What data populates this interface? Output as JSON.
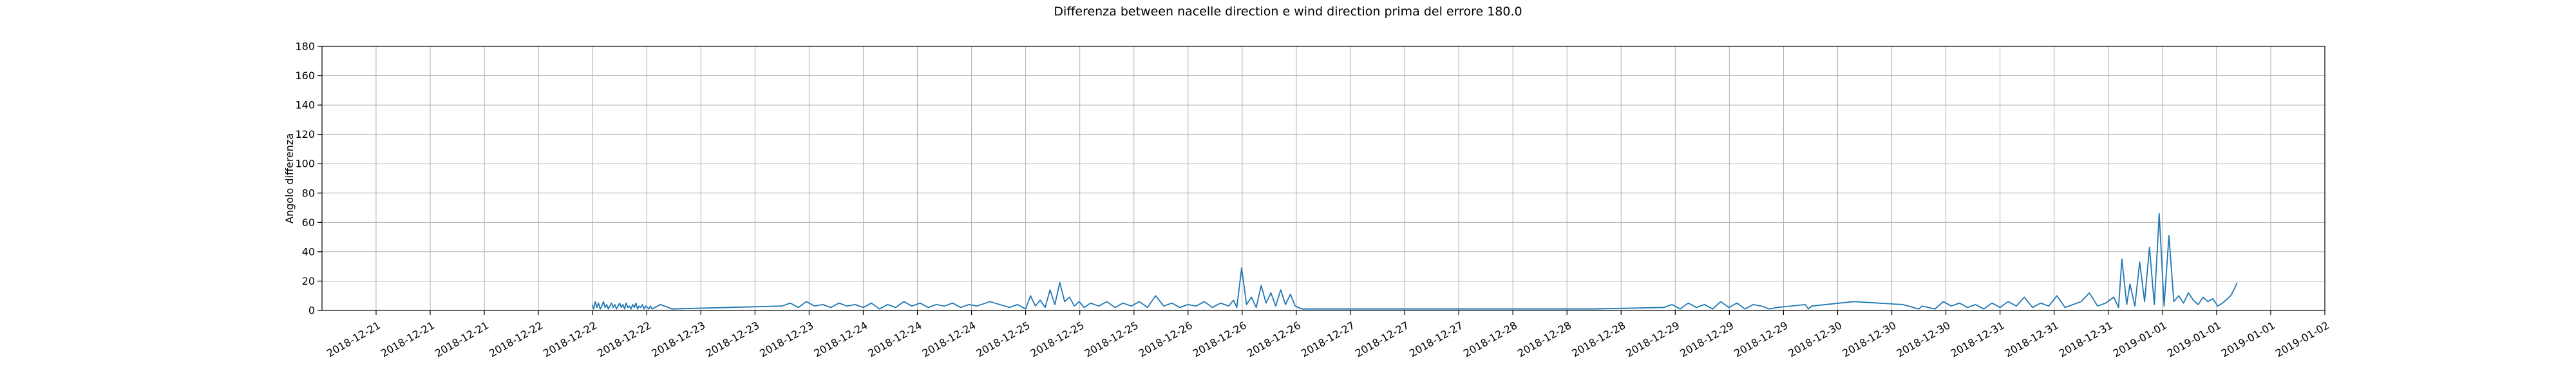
{
  "chart_data": {
    "type": "line",
    "title": "Differenza between nacelle direction e wind direction prima del errore 180.0",
    "xlabel": "",
    "ylabel": "Angolo differenza",
    "ylim": [
      0,
      180
    ],
    "y_ticks": [
      0,
      20,
      40,
      60,
      80,
      100,
      120,
      140,
      160,
      180
    ],
    "y_tick_labels": [
      "0",
      "20",
      "40",
      "60",
      "80",
      "100",
      "120",
      "140",
      "160",
      "180"
    ],
    "x_tick_labels": [
      "2018-12-21",
      "2018-12-21",
      "2018-12-21",
      "2018-12-22",
      "2018-12-22",
      "2018-12-22",
      "2018-12-23",
      "2018-12-23",
      "2018-12-23",
      "2018-12-24",
      "2018-12-24",
      "2018-12-24",
      "2018-12-25",
      "2018-12-25",
      "2018-12-25",
      "2018-12-26",
      "2018-12-26",
      "2018-12-26",
      "2018-12-27",
      "2018-12-27",
      "2018-12-27",
      "2018-12-28",
      "2018-12-28",
      "2018-12-28",
      "2018-12-29",
      "2018-12-29",
      "2018-12-29",
      "2018-12-30",
      "2018-12-30",
      "2018-12-30",
      "2018-12-31",
      "2018-12-31",
      "2018-12-31",
      "2019-01-01",
      "2019-01-01",
      "2019-01-01",
      "2019-01-02"
    ],
    "x_tick_positions": [
      0.0,
      0.3333,
      0.6667,
      1.0,
      1.3333,
      1.6667,
      2.0,
      2.3333,
      2.6667,
      3.0,
      3.3333,
      3.6667,
      4.0,
      4.3333,
      4.6667,
      5.0,
      5.3333,
      5.6667,
      6.0,
      6.3333,
      6.6667,
      7.0,
      7.3333,
      7.6667,
      8.0,
      8.3333,
      8.6667,
      9.0,
      9.3333,
      9.6667,
      10.0,
      10.3333,
      10.6667,
      11.0,
      11.3333,
      11.6667,
      12.0
    ],
    "xlim": [
      -0.333,
      12.0
    ],
    "grid": true,
    "line_color": "#1f77b4",
    "series": [
      {
        "x": [
          1.33,
          1.34,
          1.35,
          1.36,
          1.37,
          1.38,
          1.39,
          1.4,
          1.41,
          1.42,
          1.43,
          1.44,
          1.45,
          1.46,
          1.47,
          1.48,
          1.49,
          1.5,
          1.51,
          1.52,
          1.53,
          1.54,
          1.55,
          1.56,
          1.57,
          1.58,
          1.59,
          1.6,
          1.61,
          1.62,
          1.63,
          1.64,
          1.65,
          1.66,
          1.67,
          1.68,
          1.69,
          1.7,
          1.75,
          1.8,
          1.82,
          2.5,
          2.55,
          2.6,
          2.65,
          2.7,
          2.75,
          2.8,
          2.85,
          2.9,
          2.95,
          3.0,
          3.05,
          3.1,
          3.15,
          3.2,
          3.25,
          3.3,
          3.35,
          3.4,
          3.45,
          3.5,
          3.55,
          3.6,
          3.65,
          3.7,
          3.78,
          3.9,
          3.95,
          4.0,
          4.03,
          4.06,
          4.09,
          4.12,
          4.15,
          4.18,
          4.21,
          4.24,
          4.27,
          4.3,
          4.33,
          4.36,
          4.4,
          4.45,
          4.5,
          4.55,
          4.6,
          4.65,
          4.7,
          4.75,
          4.8,
          4.85,
          4.9,
          4.95,
          5.0,
          5.05,
          5.1,
          5.15,
          5.2,
          5.25,
          5.28,
          5.3,
          5.33,
          5.36,
          5.39,
          5.42,
          5.45,
          5.48,
          5.51,
          5.54,
          5.57,
          5.6,
          5.63,
          5.66,
          5.7,
          6.5,
          7.5,
          7.93,
          7.98,
          8.03,
          8.08,
          8.13,
          8.18,
          8.23,
          8.28,
          8.33,
          8.38,
          8.43,
          8.48,
          8.53,
          8.58,
          8.63,
          8.8,
          8.82,
          8.84,
          9.1,
          9.4,
          9.5,
          9.52,
          9.6,
          9.65,
          9.7,
          9.75,
          9.8,
          9.85,
          9.9,
          9.95,
          10.0,
          10.05,
          10.1,
          10.15,
          10.2,
          10.25,
          10.3,
          10.35,
          10.4,
          10.45,
          10.5,
          10.55,
          10.6,
          10.65,
          10.7,
          10.73,
          10.75,
          10.78,
          10.8,
          10.83,
          10.86,
          10.89,
          10.92,
          10.95,
          10.98,
          11.01,
          11.04,
          11.07,
          11.1,
          11.13,
          11.16,
          11.19,
          11.22,
          11.25,
          11.28,
          11.31,
          11.34,
          11.37,
          11.4,
          11.42,
          11.44,
          11.46
        ],
        "y": [
          4,
          1,
          6,
          2,
          5,
          1,
          3,
          6,
          2,
          4,
          1,
          3,
          5,
          2,
          4,
          1,
          3,
          5,
          2,
          4,
          1,
          5,
          2,
          3,
          1,
          4,
          2,
          5,
          1,
          3,
          2,
          4,
          1,
          3,
          2,
          1,
          3,
          1,
          4,
          2,
          1,
          3,
          5,
          2,
          6,
          3,
          4,
          2,
          5,
          3,
          4,
          2,
          5,
          1,
          4,
          2,
          6,
          3,
          5,
          2,
          4,
          3,
          5,
          2,
          4,
          3,
          6,
          2,
          4,
          1,
          10,
          3,
          7,
          2,
          14,
          4,
          19,
          6,
          9,
          3,
          6,
          2,
          5,
          3,
          6,
          2,
          5,
          3,
          6,
          2,
          10,
          3,
          5,
          2,
          4,
          3,
          6,
          2,
          5,
          3,
          7,
          2,
          29,
          4,
          9,
          2,
          17,
          5,
          12,
          3,
          14,
          4,
          11,
          3,
          1,
          1,
          1,
          2,
          4,
          1,
          5,
          2,
          4,
          1,
          6,
          2,
          5,
          1,
          4,
          3,
          1,
          2,
          4,
          1,
          3,
          6,
          4,
          1,
          3,
          1,
          6,
          3,
          5,
          2,
          4,
          1,
          5,
          2,
          6,
          3,
          9,
          2,
          5,
          3,
          10,
          2,
          4,
          6,
          12,
          3,
          5,
          9,
          2,
          35,
          4,
          18,
          3,
          33,
          6,
          43,
          4,
          66,
          3,
          51,
          6,
          10,
          5,
          12,
          7,
          4,
          9,
          6,
          8,
          3,
          5,
          8,
          10,
          14,
          19
        ]
      }
    ]
  }
}
